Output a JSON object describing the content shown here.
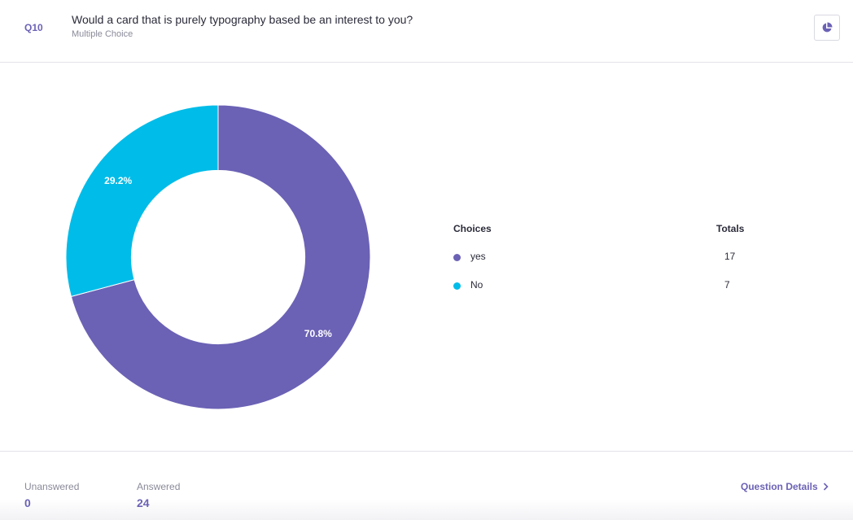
{
  "question": {
    "number": "Q10",
    "title": "Would a card that is purely typography based be an interest to you?",
    "type": "Multiple Choice"
  },
  "chart_toggle_icon": "pie-chart-icon",
  "chart_data": {
    "type": "pie",
    "categories": [
      "yes",
      "No"
    ],
    "values": [
      17,
      7
    ],
    "percent_labels": [
      "70.8%",
      "29.2%"
    ],
    "colors": [
      "#6b62b5",
      "#00bce8"
    ],
    "hole": 0.57,
    "legend_position": "right"
  },
  "legend": {
    "choices_header": "Choices",
    "totals_header": "Totals",
    "rows": [
      {
        "label": "yes",
        "total": "17",
        "color": "#6b62b5"
      },
      {
        "label": "No",
        "total": "7",
        "color": "#00bce8"
      }
    ]
  },
  "footer": {
    "unanswered_label": "Unanswered",
    "unanswered_value": "0",
    "answered_label": "Answered",
    "answered_value": "24",
    "details_link": "Question Details"
  },
  "colors": {
    "accent": "#6b62b5",
    "secondary": "#00bce8"
  }
}
